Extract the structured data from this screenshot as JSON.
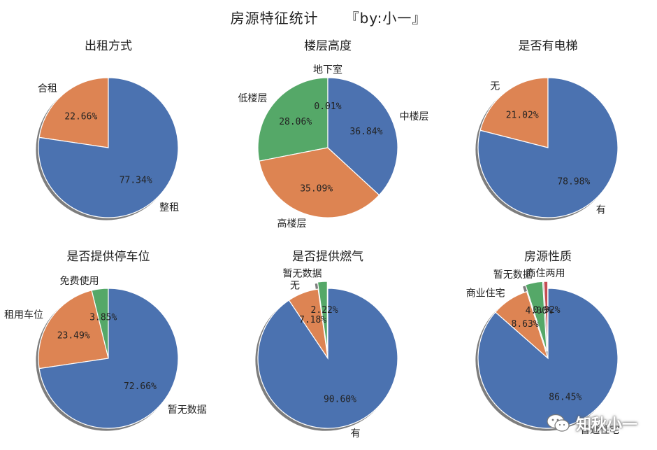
{
  "figure": {
    "title": "房源特征统计",
    "byline": "『by:小一』"
  },
  "watermark": {
    "text": "知秋小一",
    "icon": "wechat-icon"
  },
  "colors": {
    "blue": "#4C72B0",
    "orange": "#DD8452",
    "green": "#55A868",
    "red": "#C44E52"
  },
  "chart_data": [
    {
      "type": "pie",
      "title": "出租方式",
      "start_angle_deg": 90,
      "shadow": true,
      "slices": [
        {
          "label": "合租",
          "value": 22.66,
          "pct_label": "22.66%",
          "color": "#DD8452"
        },
        {
          "label": "整租",
          "value": 77.34,
          "pct_label": "77.34%",
          "color": "#4C72B0"
        }
      ]
    },
    {
      "type": "pie",
      "title": "楼层高度",
      "start_angle_deg": 90,
      "shadow": false,
      "slices": [
        {
          "label": "地下室",
          "value": 0.01,
          "pct_label": "0.01%",
          "color": "#C44E52"
        },
        {
          "label": "低楼层",
          "value": 28.06,
          "pct_label": "28.06%",
          "color": "#55A868"
        },
        {
          "label": "高楼层",
          "value": 35.09,
          "pct_label": "35.09%",
          "color": "#DD8452"
        },
        {
          "label": "中楼层",
          "value": 36.84,
          "pct_label": "36.84%",
          "color": "#4C72B0"
        }
      ]
    },
    {
      "type": "pie",
      "title": "是否有电梯",
      "start_angle_deg": 90,
      "shadow": true,
      "slices": [
        {
          "label": "无",
          "value": 21.02,
          "pct_label": "21.02%",
          "color": "#DD8452"
        },
        {
          "label": "有",
          "value": 78.98,
          "pct_label": "78.98%",
          "color": "#4C72B0"
        }
      ]
    },
    {
      "type": "pie",
      "title": "是否提供停车位",
      "start_angle_deg": 90,
      "shadow": true,
      "slices": [
        {
          "label": "免费使用",
          "value": 3.85,
          "pct_label": "3.85%",
          "color": "#55A868"
        },
        {
          "label": "租用车位",
          "value": 23.49,
          "pct_label": "23.49%",
          "color": "#DD8452"
        },
        {
          "label": "暂无数据",
          "value": 72.66,
          "pct_label": "72.66%",
          "color": "#4C72B0"
        }
      ]
    },
    {
      "type": "pie",
      "title": "是否提供燃气",
      "start_angle_deg": 90,
      "shadow": true,
      "slices": [
        {
          "label": "暂无数据",
          "value": 2.22,
          "pct_label": "2.22%",
          "color": "#55A868",
          "explode": true
        },
        {
          "label": "无",
          "value": 7.18,
          "pct_label": "7.18%",
          "color": "#DD8452"
        },
        {
          "label": "有",
          "value": 90.6,
          "pct_label": "90.60%",
          "color": "#4C72B0"
        }
      ]
    },
    {
      "type": "pie",
      "title": "房源性质",
      "start_angle_deg": 90,
      "shadow": true,
      "slices": [
        {
          "label": "商住两用",
          "value": 0.92,
          "pct_label": "0.92%",
          "color": "#C44E52",
          "explode": true
        },
        {
          "label": "暂无数据",
          "value": 4.0,
          "pct_label": "4.00%",
          "color": "#55A868",
          "explode": true
        },
        {
          "label": "商业住宅",
          "value": 8.63,
          "pct_label": "8.63%",
          "color": "#DD8452"
        },
        {
          "label": "普通住宅",
          "value": 86.45,
          "pct_label": "86.45%",
          "color": "#4C72B0"
        }
      ]
    }
  ]
}
